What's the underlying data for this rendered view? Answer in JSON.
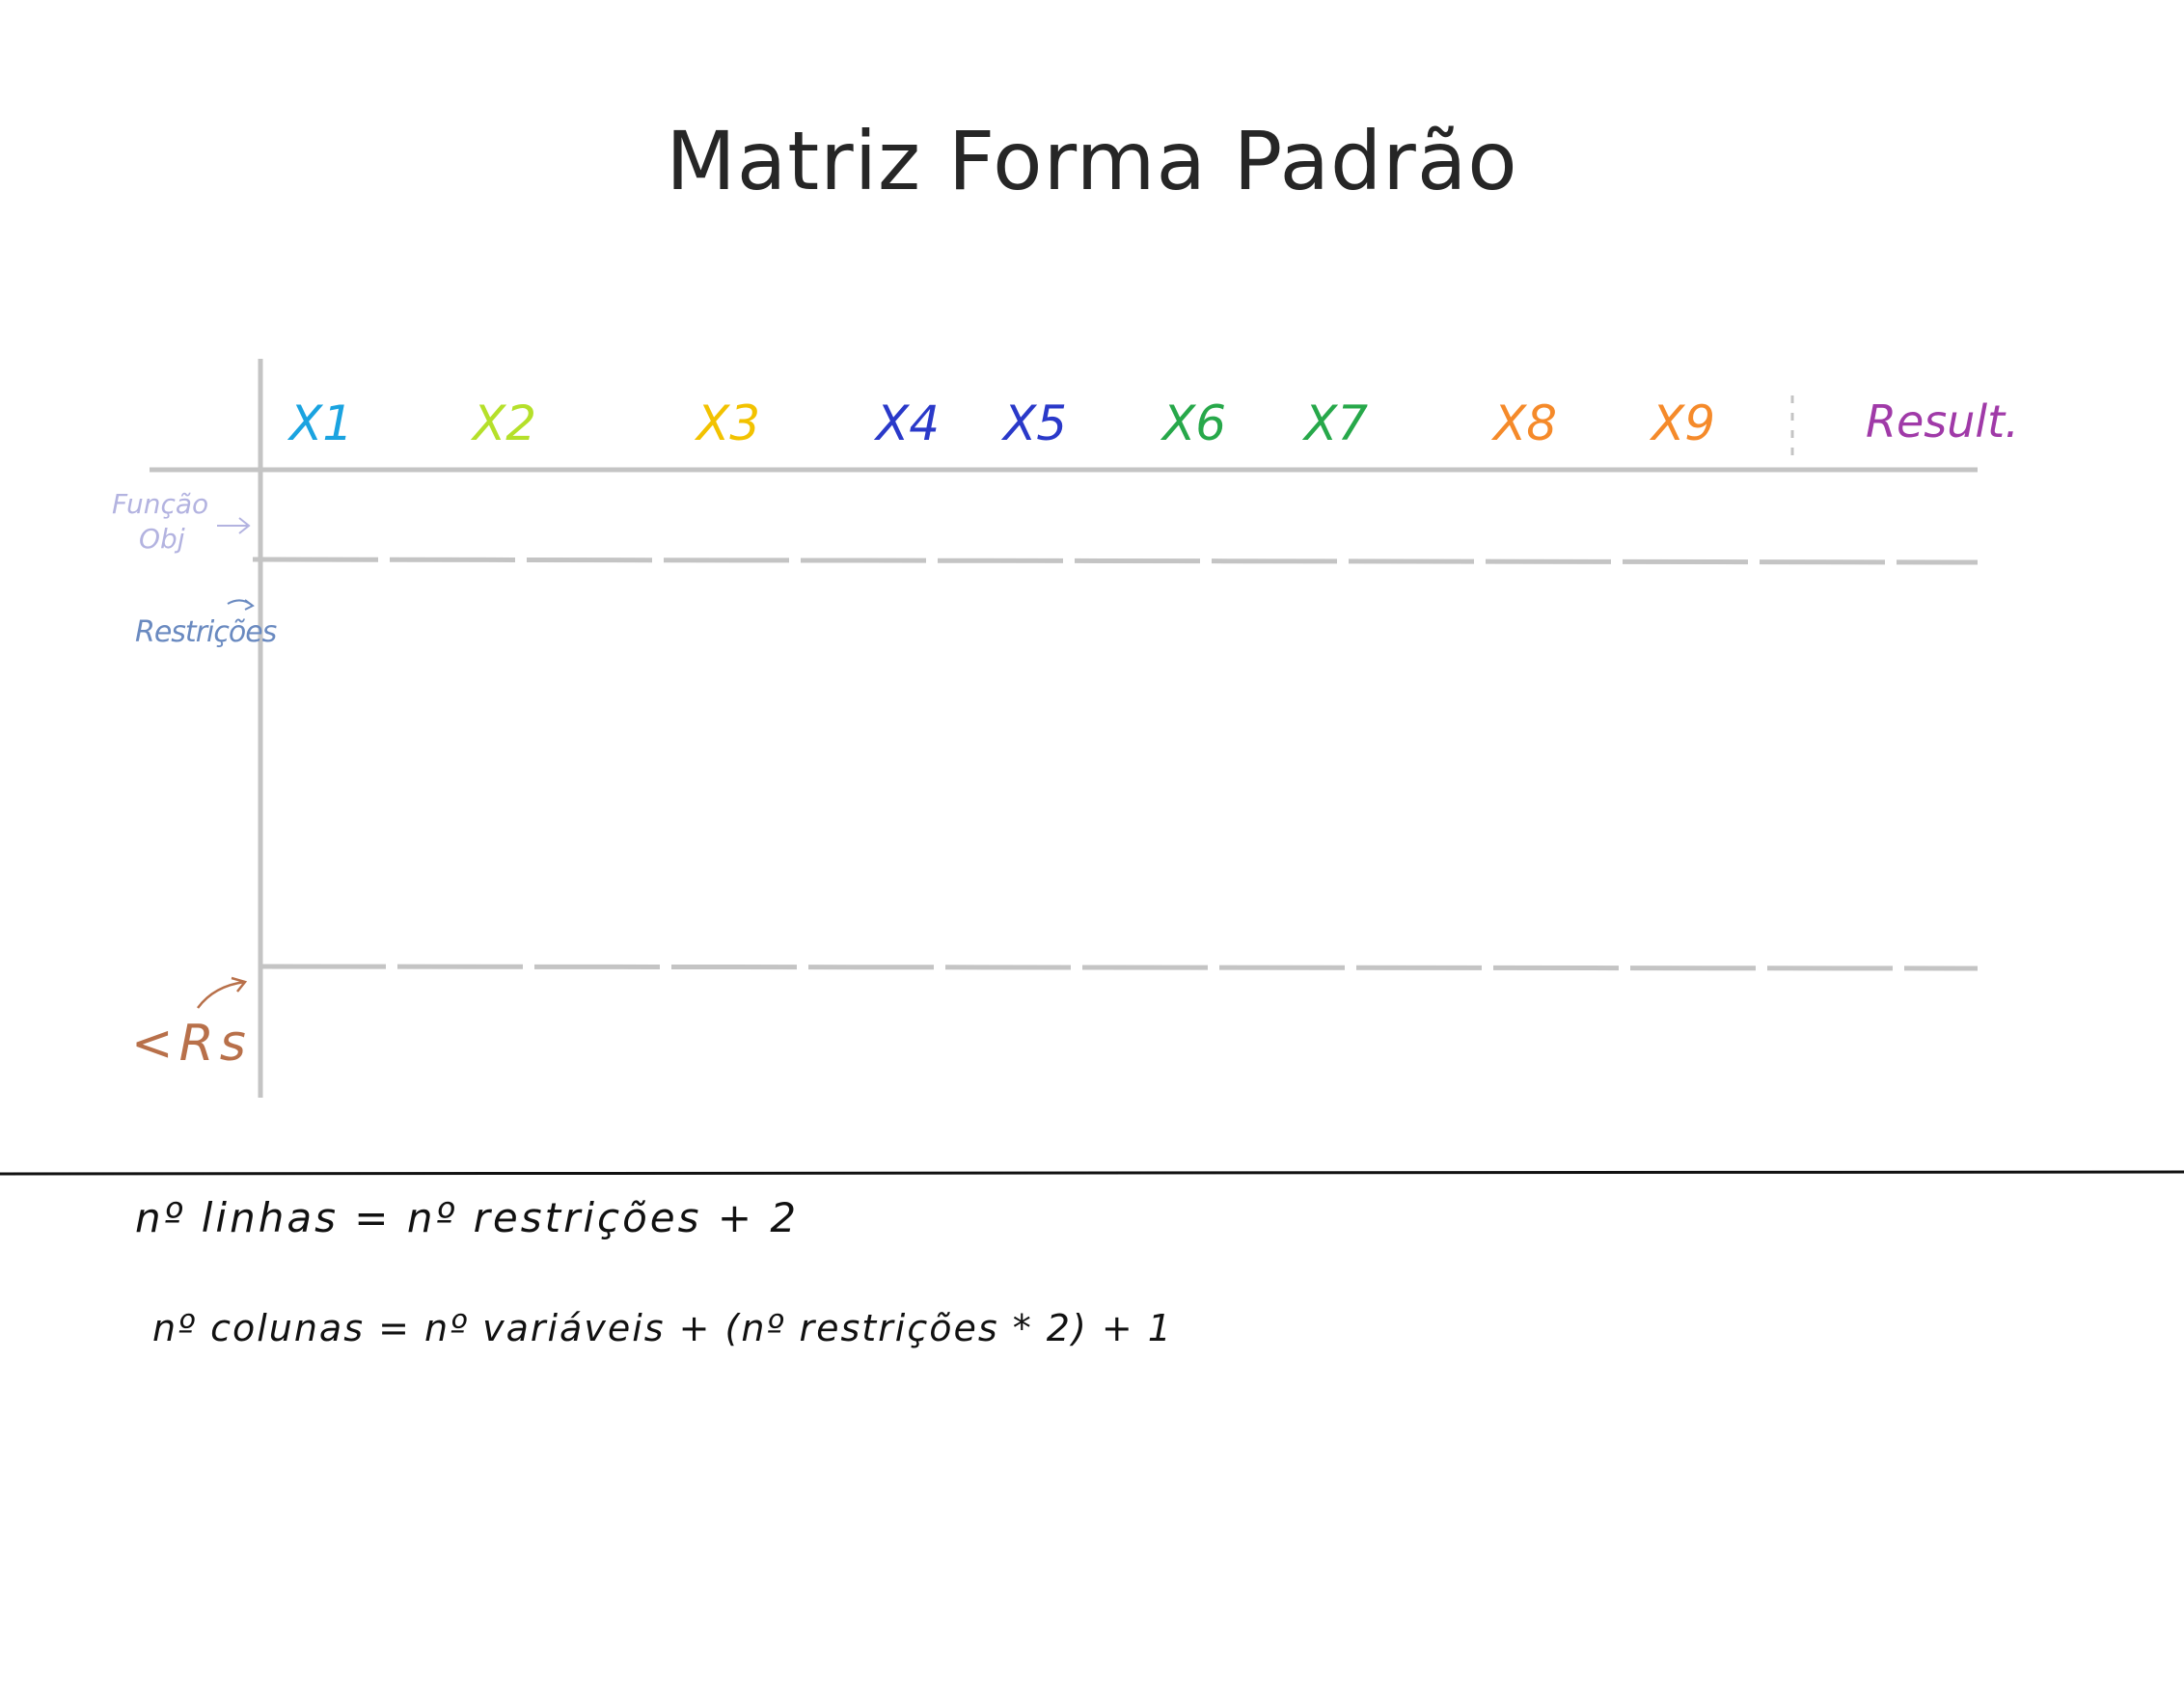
{
  "title": "Matriz Forma Padrão",
  "columns": [
    {
      "label": "X1",
      "color": "#1aa3e0"
    },
    {
      "label": "X2",
      "color": "#b5e02a"
    },
    {
      "label": "X3",
      "color": "#f2c200"
    },
    {
      "label": "X4",
      "color": "#2a39c9"
    },
    {
      "label": "X5",
      "color": "#2a39c9"
    },
    {
      "label": "X6",
      "color": "#27a84a"
    },
    {
      "label": "X7",
      "color": "#27a84a"
    },
    {
      "label": "X8",
      "color": "#f58a2a"
    },
    {
      "label": "X9",
      "color": "#f58a2a"
    },
    {
      "label": "Result.",
      "color": "#a03aa8"
    }
  ],
  "row_labels": {
    "objective": {
      "line1": "Função",
      "line2": "Obj",
      "color": "#b3b3e0"
    },
    "constraints": {
      "text": "Restrições",
      "color": "#6a8ac0"
    },
    "result_row": {
      "text": "<Rs",
      "color": "#b8704a"
    }
  },
  "notes": {
    "line1": "nº linhas = nº restrições + 2",
    "line2": "nº colunas = nº variáveis + (nº restrições * 2) + 1"
  }
}
